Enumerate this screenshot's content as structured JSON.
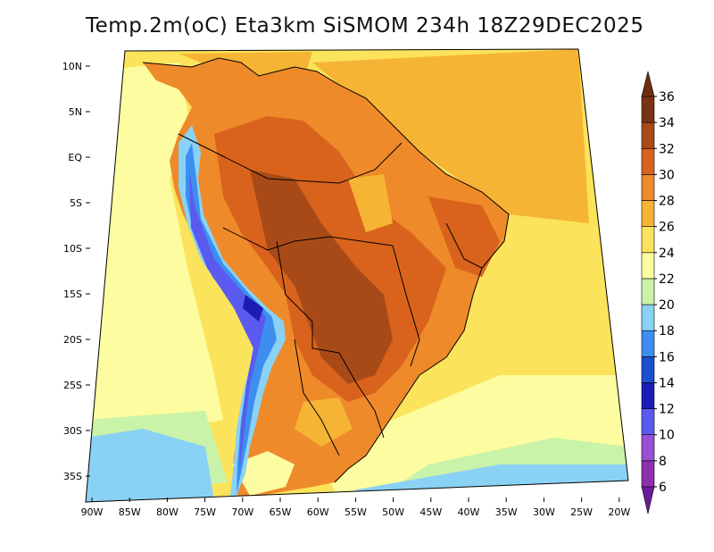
{
  "title": "Temp.2m(oC) Eta3km SiSMOM 234h 18Z29DEC2025",
  "map": {
    "lon_range": [
      -91,
      -20
    ],
    "lat_range": [
      -38,
      11
    ],
    "lat_ticks": [
      {
        "value": 10,
        "label": "10N"
      },
      {
        "value": 5,
        "label": "5N"
      },
      {
        "value": 0,
        "label": "EQ"
      },
      {
        "value": -5,
        "label": "5S"
      },
      {
        "value": -10,
        "label": "10S"
      },
      {
        "value": -15,
        "label": "15S"
      },
      {
        "value": -20,
        "label": "20S"
      },
      {
        "value": -25,
        "label": "25S"
      },
      {
        "value": -30,
        "label": "30S"
      },
      {
        "value": -35,
        "label": "35S"
      }
    ],
    "lon_ticks": [
      {
        "value": -90,
        "label": "90W"
      },
      {
        "value": -85,
        "label": "85W"
      },
      {
        "value": -80,
        "label": "80W"
      },
      {
        "value": -75,
        "label": "75W"
      },
      {
        "value": -70,
        "label": "70W"
      },
      {
        "value": -65,
        "label": "65W"
      },
      {
        "value": -60,
        "label": "60W"
      },
      {
        "value": -55,
        "label": "55W"
      },
      {
        "value": -50,
        "label": "50W"
      },
      {
        "value": -45,
        "label": "45W"
      },
      {
        "value": -40,
        "label": "40W"
      },
      {
        "value": -35,
        "label": "35W"
      },
      {
        "value": -30,
        "label": "30W"
      },
      {
        "value": -25,
        "label": "25W"
      },
      {
        "value": -20,
        "label": "20W"
      }
    ]
  },
  "colorbar": {
    "levels": [
      {
        "label": "6",
        "color": "#6a1b9a"
      },
      {
        "label": "8",
        "color": "#8e2fae"
      },
      {
        "label": "10",
        "color": "#9a4fd6"
      },
      {
        "label": "12",
        "color": "#5a5af0"
      },
      {
        "label": "14",
        "color": "#1c1cb4"
      },
      {
        "label": "16",
        "color": "#1a4fd0"
      },
      {
        "label": "18",
        "color": "#3d8ef0"
      },
      {
        "label": "20",
        "color": "#8ad2f5"
      },
      {
        "label": "22",
        "color": "#c9f3a8"
      },
      {
        "label": "24",
        "color": "#fdfca0"
      },
      {
        "label": "26",
        "color": "#fbe35b"
      },
      {
        "label": "28",
        "color": "#f6b435"
      },
      {
        "label": "30",
        "color": "#ee8a2a"
      },
      {
        "label": "32",
        "color": "#d9631c"
      },
      {
        "label": "34",
        "color": "#a84a18"
      },
      {
        "label": "36",
        "color": "#7a3312"
      }
    ],
    "bottom_color": "#6a1b9a",
    "top_color": "#6e2e10"
  }
}
